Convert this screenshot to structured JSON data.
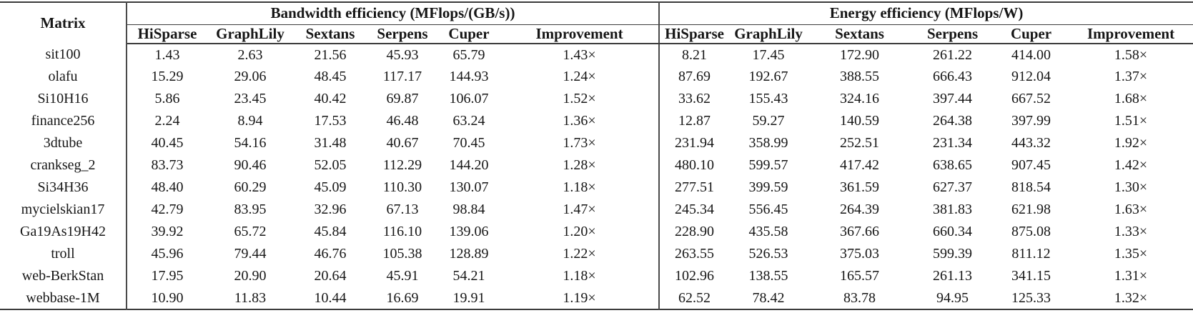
{
  "page": {
    "background_color": "#ffffff",
    "text_color": "#161616",
    "rule_color": "#3b3b3b"
  },
  "table": {
    "matrix_header": "Matrix",
    "groups": [
      {
        "label": "Bandwidth efficiency (MFlops/(GB/s))",
        "columns": [
          "HiSparse",
          "GraphLily",
          "Sextans",
          "Serpens",
          "Cuper",
          "Improvement"
        ]
      },
      {
        "label": "Energy efficiency (MFlops/W)",
        "columns": [
          "HiSparse",
          "GraphLily",
          "Sextans",
          "Serpens",
          "Cuper",
          "Improvement"
        ]
      }
    ],
    "rows": [
      {
        "matrix": "sit100",
        "bandwidth": [
          "1.43",
          "2.63",
          "21.56",
          "45.93",
          "65.79",
          "1.43×"
        ],
        "energy": [
          "8.21",
          "17.45",
          "172.90",
          "261.22",
          "414.00",
          "1.58×"
        ]
      },
      {
        "matrix": "olafu",
        "bandwidth": [
          "15.29",
          "29.06",
          "48.45",
          "117.17",
          "144.93",
          "1.24×"
        ],
        "energy": [
          "87.69",
          "192.67",
          "388.55",
          "666.43",
          "912.04",
          "1.37×"
        ]
      },
      {
        "matrix": "Si10H16",
        "bandwidth": [
          "5.86",
          "23.45",
          "40.42",
          "69.87",
          "106.07",
          "1.52×"
        ],
        "energy": [
          "33.62",
          "155.43",
          "324.16",
          "397.44",
          "667.52",
          "1.68×"
        ]
      },
      {
        "matrix": "finance256",
        "bandwidth": [
          "2.24",
          "8.94",
          "17.53",
          "46.48",
          "63.24",
          "1.36×"
        ],
        "energy": [
          "12.87",
          "59.27",
          "140.59",
          "264.38",
          "397.99",
          "1.51×"
        ]
      },
      {
        "matrix": "3dtube",
        "bandwidth": [
          "40.45",
          "54.16",
          "31.48",
          "40.67",
          "70.45",
          "1.73×"
        ],
        "energy": [
          "231.94",
          "358.99",
          "252.51",
          "231.34",
          "443.32",
          "1.92×"
        ]
      },
      {
        "matrix": "crankseg_2",
        "bandwidth": [
          "83.73",
          "90.46",
          "52.05",
          "112.29",
          "144.20",
          "1.28×"
        ],
        "energy": [
          "480.10",
          "599.57",
          "417.42",
          "638.65",
          "907.45",
          "1.42×"
        ]
      },
      {
        "matrix": "Si34H36",
        "bandwidth": [
          "48.40",
          "60.29",
          "45.09",
          "110.30",
          "130.07",
          "1.18×"
        ],
        "energy": [
          "277.51",
          "399.59",
          "361.59",
          "627.37",
          "818.54",
          "1.30×"
        ]
      },
      {
        "matrix": "mycielskian17",
        "bandwidth": [
          "42.79",
          "83.95",
          "32.96",
          "67.13",
          "98.84",
          "1.47×"
        ],
        "energy": [
          "245.34",
          "556.45",
          "264.39",
          "381.83",
          "621.98",
          "1.63×"
        ]
      },
      {
        "matrix": "Ga19As19H42",
        "bandwidth": [
          "39.92",
          "65.72",
          "45.84",
          "116.10",
          "139.06",
          "1.20×"
        ],
        "energy": [
          "228.90",
          "435.58",
          "367.66",
          "660.34",
          "875.08",
          "1.33×"
        ]
      },
      {
        "matrix": "troll",
        "bandwidth": [
          "45.96",
          "79.44",
          "46.76",
          "105.38",
          "128.89",
          "1.22×"
        ],
        "energy": [
          "263.55",
          "526.53",
          "375.03",
          "599.39",
          "811.12",
          "1.35×"
        ]
      },
      {
        "matrix": "web-BerkStan",
        "bandwidth": [
          "17.95",
          "20.90",
          "20.64",
          "45.91",
          "54.21",
          "1.18×"
        ],
        "energy": [
          "102.96",
          "138.55",
          "165.57",
          "261.13",
          "341.15",
          "1.31×"
        ]
      },
      {
        "matrix": "webbase-1M",
        "bandwidth": [
          "10.90",
          "11.83",
          "10.44",
          "16.69",
          "19.91",
          "1.19×"
        ],
        "energy": [
          "62.52",
          "78.42",
          "83.78",
          "94.95",
          "125.33",
          "1.32×"
        ]
      }
    ]
  }
}
